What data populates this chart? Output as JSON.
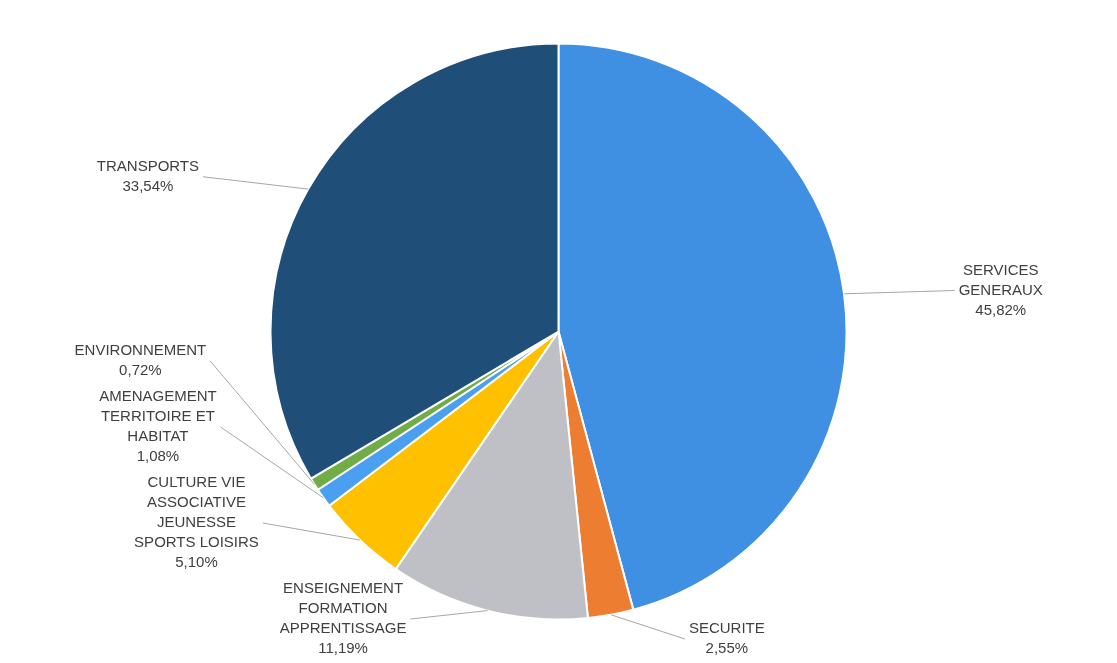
{
  "chart_data": {
    "type": "pie",
    "categories": [
      "SERVICES GENERAUX",
      "SECURITE",
      "ENSEIGNEMENT FORMATION APPRENTISSAGE",
      "CULTURE VIE ASSOCIATIVE JEUNESSE SPORTS LOISIRS",
      "AMENAGEMENT TERRITOIRE ET HABITAT",
      "ENVIRONNEMENT",
      "TRANSPORTS"
    ],
    "values": [
      45.82,
      2.55,
      11.19,
      5.1,
      1.08,
      0.72,
      33.54
    ],
    "value_labels": [
      "45,82%",
      "2,55%",
      "11,19%",
      "5,10%",
      "1,08%",
      "0,72%",
      "33,54%"
    ],
    "colors": [
      "#3f8fe2",
      "#ed7d31",
      "#bfbfc6",
      "#ffc000",
      "#4a9ff0",
      "#70ad47",
      "#1f4e79"
    ],
    "legend": false
  }
}
